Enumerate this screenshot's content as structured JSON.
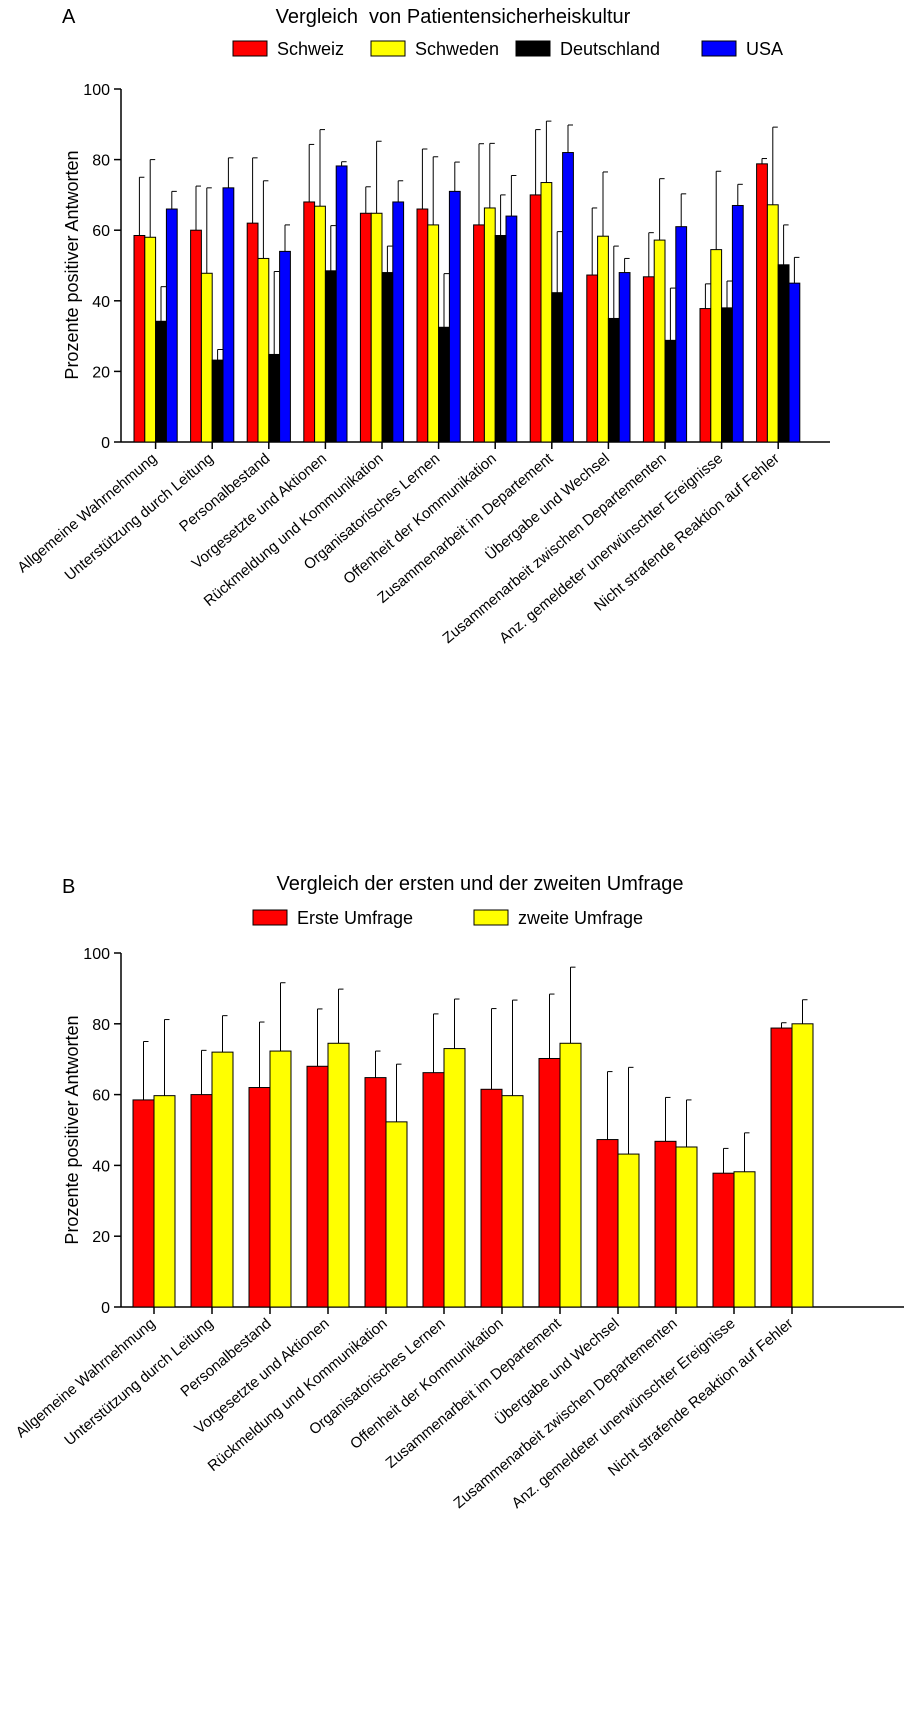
{
  "chart_data": [
    {
      "type": "bar",
      "panel_label": "A",
      "title": "Vergleich  von Patientensicherheiskultur",
      "ylabel": "Prozente positiver Antworten",
      "xlabel": "",
      "ylim": [
        0,
        100
      ],
      "yticks": [
        "0",
        "20",
        "40",
        "60",
        "80",
        "100"
      ],
      "legend_position": "top-center",
      "categories": [
        "Allgemeine Wahrnehmung",
        "Unterstützung durch Leitung",
        "Personalbestand",
        "Vorgesetzte und Aktionen",
        "Rückmeldung und Kommunikation",
        "Organisatorisches Lernen",
        "Offenheit der Kommunikation",
        "Zusammenarbeit im Departement",
        "Übergabe und Wechsel",
        "Zusammenarbeit zwischen Departementen",
        "Anz. gemeldeter unerwünschter Ereignisse",
        "Nicht strafende Reaktion auf Fehler"
      ],
      "series": [
        {
          "name": "Schweiz",
          "color": "#ff0000",
          "values": [
            58.5,
            60,
            62,
            68,
            64.8,
            66,
            61.5,
            70,
            47.3,
            46.8,
            37.8,
            78.8
          ],
          "errors": [
            16.5,
            12.5,
            18.5,
            16.3,
            7.5,
            17,
            23,
            18.5,
            19,
            12.5,
            7,
            1.5
          ]
        },
        {
          "name": "Schweden",
          "color": "#ffff00",
          "values": [
            58,
            47.8,
            52,
            66.8,
            64.8,
            61.5,
            66.3,
            73.5,
            58.3,
            57.2,
            54.5,
            67.2
          ],
          "errors": [
            22,
            24.2,
            22,
            21.7,
            20.4,
            19.3,
            18.3,
            17.4,
            18.2,
            17.4,
            22.2,
            22
          ]
        },
        {
          "name": "Deutschland",
          "color": "#000000",
          "values": [
            34.2,
            23.2,
            24.8,
            48.5,
            48,
            32.5,
            58.5,
            42.3,
            35,
            28.8,
            38,
            50.2
          ],
          "errors": [
            9.8,
            3,
            23.5,
            12.8,
            7.5,
            15.2,
            11.5,
            17.3,
            20.5,
            14.8,
            7.6,
            11.3
          ]
        },
        {
          "name": "USA",
          "color": "#0000ff",
          "values": [
            66,
            72,
            54,
            78.2,
            68,
            71,
            64,
            82,
            48,
            61,
            67,
            45
          ],
          "errors": [
            5,
            8.5,
            7.5,
            1.2,
            6,
            8.3,
            11.5,
            7.8,
            4,
            9.3,
            6,
            7.3
          ]
        }
      ]
    },
    {
      "type": "bar",
      "panel_label": "B",
      "title": "Vergleich der ersten und der zweiten Umfrage",
      "ylabel": "Prozente positiver Antworten",
      "xlabel": "",
      "ylim": [
        0,
        100
      ],
      "yticks": [
        "0",
        "20",
        "40",
        "60",
        "80",
        "100"
      ],
      "legend_position": "top-center",
      "categories": [
        "Allgemeine Wahrnehmung",
        "Unterstützung durch Leitung",
        "Personalbestand",
        "Vorgesetzte und Aktionen",
        "Rückmeldung und Kommunikation",
        "Organisatorisches Lernen",
        "Offenheit der Kommunikation",
        "Zusammenarbeit im Departement",
        "Übergabe und Wechsel",
        "Zusammenarbeit zwischen Departementen",
        "Anz. gemeldeter unerwünschter Ereignisse",
        "Nicht strafende Reaktion auf Fehler"
      ],
      "series": [
        {
          "name": "Erste Umfrage",
          "color": "#ff0000",
          "values": [
            58.5,
            60,
            62,
            68,
            64.8,
            66.2,
            61.5,
            70.2,
            47.3,
            46.8,
            37.8,
            78.8
          ],
          "errors": [
            16.5,
            12.5,
            18.5,
            16.2,
            7.5,
            16.6,
            22.8,
            18.2,
            19.2,
            12.4,
            7,
            1.5
          ]
        },
        {
          "name": "zweite Umfrage",
          "color": "#ffff00",
          "values": [
            59.7,
            72,
            72.3,
            74.5,
            52.3,
            73,
            59.7,
            74.5,
            43.2,
            45.2,
            38.2,
            80
          ],
          "errors": [
            21.5,
            10.3,
            19.3,
            15.3,
            16.3,
            14,
            27,
            21.5,
            24.5,
            13.3,
            11,
            6.8
          ]
        }
      ]
    }
  ]
}
